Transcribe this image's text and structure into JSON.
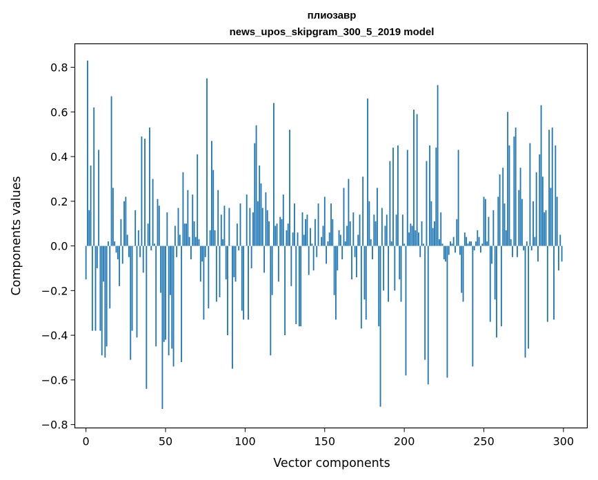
{
  "chart_data": {
    "type": "bar",
    "title_line1": "плиозавр",
    "title_line2": "news_upos_skipgram_300_5_2019 model",
    "xlabel": "Vector components",
    "ylabel": "Components values",
    "xlim": [
      -7,
      315
    ],
    "ylim": [
      -0.815,
      0.905
    ],
    "x_ticks": [
      0,
      50,
      100,
      150,
      200,
      250,
      300
    ],
    "x_tick_labels": [
      "0",
      "50",
      "100",
      "150",
      "200",
      "250",
      "300"
    ],
    "y_ticks": [
      -0.8,
      -0.6,
      -0.4,
      -0.2,
      0.0,
      0.2,
      0.4,
      0.6,
      0.8
    ],
    "y_tick_labels": [
      "−0.8",
      "−0.6",
      "−0.4",
      "−0.2",
      "0.0",
      "0.2",
      "0.4",
      "0.6",
      "0.8"
    ],
    "bar_color": "#1f77b4",
    "values": [
      -0.15,
      0.83,
      0.16,
      0.36,
      -0.38,
      0.62,
      -0.38,
      -0.1,
      0.43,
      -0.38,
      -0.49,
      -0.16,
      -0.5,
      -0.45,
      0.02,
      -0.28,
      0.67,
      0.26,
      0.02,
      -0.03,
      -0.06,
      -0.18,
      0.12,
      -0.08,
      0.2,
      0.22,
      0.05,
      -0.05,
      -0.51,
      -0.38,
      0.0,
      0.16,
      -0.41,
      0.07,
      -0.05,
      0.49,
      -0.12,
      0.48,
      -0.64,
      0.1,
      0.53,
      -0.02,
      0.3,
      0.01,
      -0.45,
      0.21,
      0.18,
      -0.21,
      -0.73,
      -0.43,
      -0.42,
      0.15,
      -0.49,
      -0.22,
      -0.46,
      -0.54,
      0.09,
      -0.05,
      0.17,
      0.05,
      -0.52,
      0.33,
      0.1,
      0.1,
      0.25,
      0.04,
      -0.06,
      0.23,
      0.11,
      0.04,
      0.41,
      0.03,
      -0.16,
      -0.07,
      -0.33,
      -0.05,
      0.75,
      -0.28,
      0.07,
      0.47,
      0.34,
      0.07,
      -0.25,
      0.25,
      -0.23,
      0.14,
      0.03,
      0.18,
      -0.15,
      -0.4,
      0.17,
      0.0,
      -0.55,
      -0.14,
      -0.16,
      0.1,
      -0.02,
      0.19,
      -0.29,
      -0.33,
      0.0,
      0.23,
      -0.33,
      0.17,
      -0.1,
      0.15,
      0.46,
      0.54,
      0.2,
      0.36,
      0.28,
      0.17,
      -0.12,
      0.24,
      0.16,
      0.11,
      -0.49,
      -0.22,
      0.64,
      0.09,
      0.1,
      -0.16,
      0.13,
      0.12,
      0.23,
      -0.4,
      0.07,
      0.1,
      0.52,
      -0.18,
      0.06,
      0.19,
      -0.35,
      0.06,
      -0.36,
      -0.36,
      0.15,
      0.05,
      0.12,
      0.14,
      -0.13,
      0.08,
      0.01,
      -0.11,
      0.12,
      -0.05,
      0.19,
      0.0,
      0.04,
      0.09,
      0.22,
      -0.08,
      0.02,
      0.06,
      0.19,
      0.12,
      -0.22,
      -0.33,
      -0.11,
      0.07,
      0.05,
      -0.06,
      0.26,
      0.02,
      0.09,
      0.3,
      0.11,
      -0.15,
      0.15,
      -0.05,
      -0.14,
      0.05,
      0.14,
      -0.37,
      0.31,
      -0.24,
      -0.33,
      0.66,
      0.2,
      0.03,
      -0.06,
      0.14,
      0.11,
      0.26,
      -0.36,
      -0.72,
      0.17,
      -0.2,
      0.09,
      0.14,
      -0.25,
      0.38,
      0.02,
      0.44,
      -0.2,
      0.14,
      0.45,
      -0.15,
      -0.25,
      0.14,
      0.01,
      -0.58,
      0.43,
      0.06,
      0.1,
      0.09,
      0.61,
      0.07,
      0.59,
      0.06,
      -0.05,
      0.11,
      0.01,
      -0.51,
      0.38,
      -0.62,
      0.45,
      0.2,
      0.08,
      0.11,
      0.44,
      0.72,
      0.03,
      0.15,
      0.01,
      -0.06,
      -0.07,
      -0.59,
      -0.04,
      0.02,
      0.01,
      0.04,
      -0.03,
      0.12,
      0.43,
      -0.04,
      -0.21,
      -0.25,
      0.06,
      0.04,
      0.01,
      0.02,
      0.02,
      -0.54,
      -0.02,
      0.02,
      0.07,
      0.04,
      -0.03,
      0.01,
      0.22,
      0.21,
      0.02,
      0.13,
      -0.34,
      -0.08,
      0.16,
      -0.24,
      -0.41,
      0.22,
      0.32,
      -0.36,
      0.35,
      0.19,
      0.07,
      0.6,
      0.45,
      0.03,
      -0.05,
      0.49,
      0.53,
      -0.05,
      0.25,
      0.35,
      0.21,
      -0.02,
      -0.5,
      0.02,
      -0.46,
      0.46,
      -0.02,
      0.2,
      0.04,
      0.33,
      -0.07,
      0.41,
      0.63,
      0.31,
      0.15,
      0.16,
      -0.34,
      0.52,
      0.26,
      0.53,
      -0.33,
      0.45,
      0.22,
      -0.11,
      0.05,
      -0.07
    ]
  }
}
